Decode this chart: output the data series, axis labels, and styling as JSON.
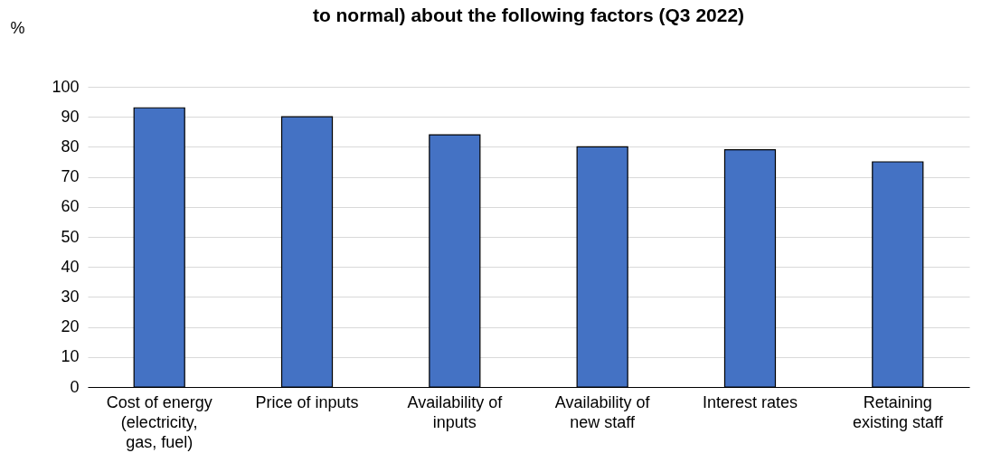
{
  "chart_data": {
    "type": "bar",
    "title": "to normal) about the following factors (Q3 2022)",
    "ylabel": "%",
    "categories": [
      "Cost of energy (electricity, gas, fuel)",
      "Price of inputs",
      "Availability of inputs",
      "Availability of new staff",
      "Interest rates",
      "Retaining existing staff"
    ],
    "values": [
      93,
      90,
      84,
      80,
      79,
      75
    ],
    "color": "#4472c4",
    "ylim": [
      0,
      100
    ],
    "yticks": [
      0,
      10,
      20,
      30,
      40,
      50,
      60,
      70,
      80,
      90,
      100
    ],
    "grid": "y"
  }
}
